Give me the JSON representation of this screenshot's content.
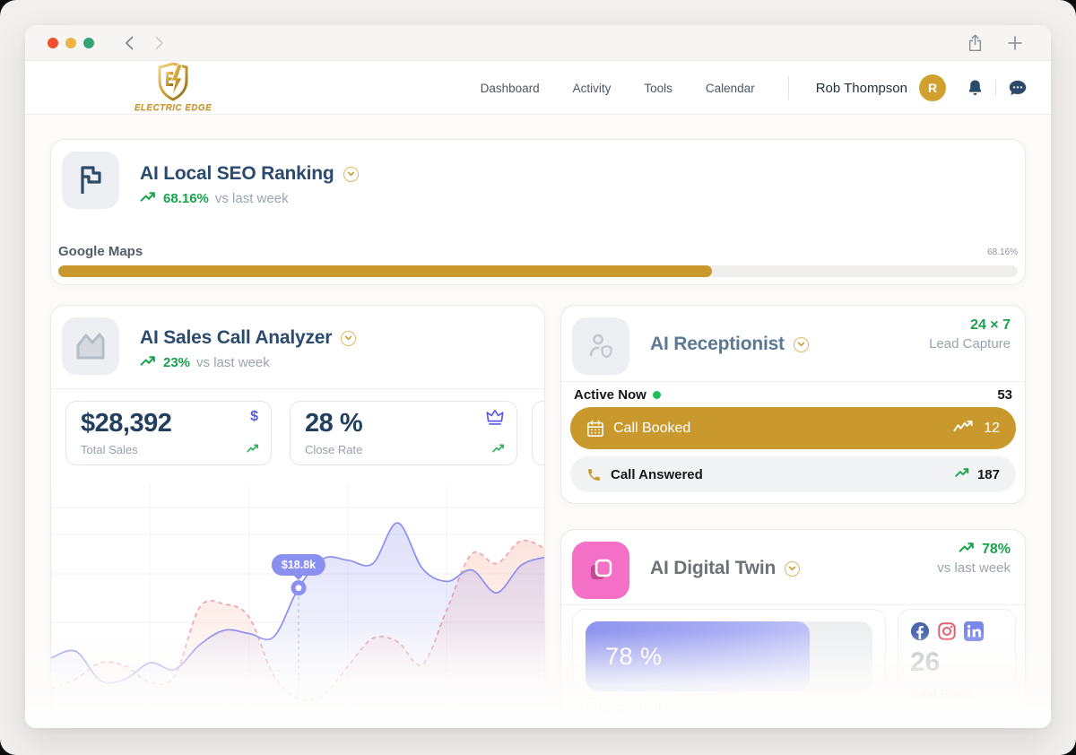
{
  "header": {
    "logo": {
      "text": "ELECTRIC EDGE"
    },
    "nav": [
      {
        "label": "Dashboard"
      },
      {
        "label": "Activity"
      },
      {
        "label": "Tools"
      },
      {
        "label": "Calendar"
      }
    ],
    "user": {
      "name": "Rob Thompson",
      "initial": "R"
    }
  },
  "seo_card": {
    "title": "AI Local SEO Ranking",
    "trend_value": "68.16%",
    "trend_label": "vs last week",
    "progress_label": "Google Maps",
    "progress_value_label": "68.16%",
    "progress_percent": 68.16
  },
  "sales_card": {
    "title": "AI Sales Call Analyzer",
    "trend_value": "23%",
    "trend_label": "vs last week",
    "dollar_glyph": "$",
    "stats": [
      {
        "value": "$28,392",
        "label": "Total Sales",
        "icon": "dollar-icon"
      },
      {
        "value": "28 %",
        "label": "Close Rate",
        "icon": "crown-icon"
      }
    ]
  },
  "receptionist_card": {
    "title": "AI Receptionist",
    "availability_value": "24 × 7",
    "availability_label": "Lead Capture",
    "active_label": "Active Now",
    "active_count": "53",
    "rows": [
      {
        "label": "Call Booked",
        "count": "12"
      },
      {
        "label": "Call Answered",
        "count": "187"
      }
    ]
  },
  "twin_card": {
    "title": "AI Digital Twin",
    "trend_value": "78%",
    "trend_label": "vs last week",
    "engagement_value_label": "78 %",
    "engagement_percent": 78,
    "engagement_label": "Engagement",
    "posts_value": "26",
    "posts_label": "Total Posts",
    "social_icons": [
      "facebook-icon",
      "instagram-icon",
      "linkedin-icon"
    ]
  },
  "chart_data": {
    "type": "area",
    "title": "",
    "xlabel": "",
    "ylabel": "",
    "x_axis": "hidden",
    "y_axis": "hidden",
    "grid": true,
    "legend": "none",
    "unit": "USD thousands",
    "ylim": [
      4,
      30
    ],
    "series": [
      {
        "name": "current-week",
        "style": "solid",
        "color": "#8b8ff0",
        "fill_id": "gradPurple",
        "values": [
          10.2,
          11.0,
          7.4,
          7.6,
          9.6,
          8.8,
          11.8,
          13.6,
          13.2,
          12.8,
          18.8,
          22.4,
          22.2,
          21.8,
          26.8,
          21.2,
          19.6,
          21.0,
          18.2,
          21.6,
          22.6
        ]
      },
      {
        "name": "previous-week",
        "style": "dashed",
        "color": "#f2a3ad",
        "fill_id": "gradPink",
        "values": [
          6.4,
          7.6,
          9.6,
          9.2,
          7.2,
          8.0,
          16.4,
          16.8,
          15.2,
          8.0,
          5.2,
          5.6,
          9.2,
          12.6,
          12.2,
          9.4,
          16.2,
          23.0,
          21.8,
          24.6,
          23.6
        ]
      }
    ],
    "tooltip": {
      "series_index": 0,
      "point_index": 10,
      "label": "$18.8k"
    }
  },
  "colors": {
    "gold": "#C9992E",
    "navy": "#2A4B6D",
    "green": "#17A34B",
    "purple": "#8B8FF0",
    "pink": "#F470C6"
  }
}
